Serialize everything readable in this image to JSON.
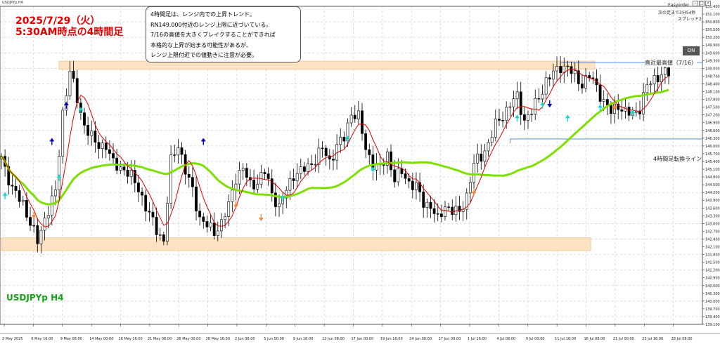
{
  "window": {
    "symbol_label": "USDJPYp,H4",
    "ea_name": "Easyorder",
    "timer_text": "次の足まで3分54秒",
    "spread_text": "スプレッド2",
    "on_button": "ON",
    "buttons": [
      "minimize-icon",
      "maximize-icon",
      "close-icon"
    ]
  },
  "titles": {
    "date_line1": "2025/7/29（火）",
    "date_line2": "5:30AM時点の4時間足",
    "symbol": "USDJPYp H4"
  },
  "note": {
    "lines": [
      "4時間足は、レンジ内での上昇トレンド。",
      "RN149.000付近のレンジ上限に近づいている。",
      "7/16の高値を大きくブレイクすることができれば",
      "本格的な上昇が始まる可能性があるが、",
      "レンジ上限付近での値動きに注意が必要。"
    ]
  },
  "annotations": {
    "recent_high": "直近最高値（7/16）",
    "turn_line": "4時間足転換ライン"
  },
  "colors": {
    "candle": "#000000",
    "ma_short": "#e00000",
    "ma_long": "#7ee000",
    "zone": "#fde2c4",
    "zone_border": "#f3c592",
    "line_blue": "#3d7fd6",
    "arrow_blue": "#0000aa",
    "arrow_cyan": "#19d6d6",
    "arrow_orange": "#f08a3c",
    "grid": "#cfcfcf",
    "date_title": "#e00000",
    "symbol_title": "#16a516"
  },
  "chart_data": {
    "type": "candlestick",
    "symbol": "USDJPYp",
    "timeframe": "H4",
    "grid": true,
    "y_axis": {
      "ticks": [
        "151.400",
        "151.100",
        "150.800",
        "150.500",
        "150.200",
        "149.900",
        "149.600",
        "149.300",
        "149.000",
        "148.700",
        "148.400",
        "148.100",
        "147.800",
        "147.500",
        "147.200",
        "146.900",
        "146.600",
        "146.300",
        "146.000",
        "145.700",
        "145.400",
        "145.100",
        "144.800",
        "144.500",
        "144.200",
        "143.900",
        "143.600",
        "143.300",
        "143.000",
        "142.700",
        "142.400",
        "142.100",
        "141.800",
        "141.500",
        "141.200",
        "140.900",
        "140.600",
        "140.300",
        "140.000",
        "139.700",
        "139.400",
        "139.100"
      ],
      "range": [
        139.1,
        151.4
      ]
    },
    "x_axis": {
      "labels": [
        "2 May 2025",
        "6 May 16:00",
        "9 May 08:00",
        "14 May 00:00",
        "16 May 16:00",
        "21 May 08:00",
        "26 May 00:00",
        "28 May 16:00",
        "2 Jun 08:00",
        "5 Jun 00:00",
        "9 Jun 16:00",
        "12 Jun 08:00",
        "17 Jun 00:00",
        "19 Jun 16:00",
        "24 Jun 08:00",
        "27 Jun 00:00",
        "1 Jul 16:00",
        "4 Jul 08:00",
        "9 Jul 00:00",
        "11 Jul 16:00",
        "16 Jul 08:00",
        "21 Jul 00:00",
        "23 Jul 16:00",
        "28 Jul 08:00"
      ]
    },
    "anchors": [
      [
        0,
        145.6
      ],
      [
        3,
        144.3
      ],
      [
        6,
        143.8
      ],
      [
        8,
        143.0
      ],
      [
        10,
        142.3
      ],
      [
        12,
        143.2
      ],
      [
        15,
        144.2
      ],
      [
        17,
        147.3
      ],
      [
        19,
        148.9
      ],
      [
        21,
        147.8
      ],
      [
        23,
        146.8
      ],
      [
        26,
        146.1
      ],
      [
        29,
        146.0
      ],
      [
        31,
        145.3
      ],
      [
        33,
        145.2
      ],
      [
        36,
        144.8
      ],
      [
        38,
        144.4
      ],
      [
        40,
        143.6
      ],
      [
        43,
        142.8
      ],
      [
        45,
        142.3
      ],
      [
        47,
        145.4
      ],
      [
        49,
        146.1
      ],
      [
        51,
        145.0
      ],
      [
        53,
        144.3
      ],
      [
        55,
        143.2
      ],
      [
        57,
        142.9
      ],
      [
        59,
        142.7
      ],
      [
        61,
        143.0
      ],
      [
        63,
        143.7
      ],
      [
        65,
        144.8
      ],
      [
        67,
        145.1
      ],
      [
        69,
        144.5
      ],
      [
        71,
        144.6
      ],
      [
        73,
        145.0
      ],
      [
        75,
        144.2
      ],
      [
        77,
        143.6
      ],
      [
        79,
        144.3
      ],
      [
        81,
        144.9
      ],
      [
        83,
        145.0
      ],
      [
        85,
        145.2
      ],
      [
        87,
        145.5
      ],
      [
        89,
        145.9
      ],
      [
        91,
        145.4
      ],
      [
        93,
        146.0
      ],
      [
        95,
        146.3
      ],
      [
        97,
        147.3
      ],
      [
        99,
        147.1
      ],
      [
        101,
        145.9
      ],
      [
        103,
        145.3
      ],
      [
        105,
        145.1
      ],
      [
        107,
        145.7
      ],
      [
        109,
        144.7
      ],
      [
        111,
        145.0
      ],
      [
        113,
        144.6
      ],
      [
        115,
        144.4
      ],
      [
        117,
        143.8
      ],
      [
        119,
        143.7
      ],
      [
        121,
        143.1
      ],
      [
        123,
        143.7
      ],
      [
        125,
        143.5
      ],
      [
        127,
        143.4
      ],
      [
        129,
        144.1
      ],
      [
        131,
        145.3
      ],
      [
        133,
        145.6
      ],
      [
        135,
        146.1
      ],
      [
        137,
        146.8
      ],
      [
        139,
        147.2
      ],
      [
        141,
        147.6
      ],
      [
        143,
        147.9
      ],
      [
        145,
        147.0
      ],
      [
        147,
        147.3
      ],
      [
        149,
        147.9
      ],
      [
        151,
        148.5
      ],
      [
        153,
        148.8
      ],
      [
        155,
        149.1
      ],
      [
        157,
        149.0
      ],
      [
        159,
        148.7
      ],
      [
        161,
        148.4
      ],
      [
        163,
        148.7
      ],
      [
        165,
        148.3
      ],
      [
        167,
        147.7
      ],
      [
        169,
        147.3
      ],
      [
        171,
        147.6
      ],
      [
        173,
        147.3
      ],
      [
        175,
        147.2
      ],
      [
        177,
        147.5
      ],
      [
        179,
        148.3
      ],
      [
        181,
        148.6
      ],
      [
        183,
        148.8
      ]
    ],
    "ma_short_period": "fast",
    "ma_long_period": "slow",
    "zones": [
      {
        "name": "range-upper",
        "from": 148.96,
        "to": 149.28
      },
      {
        "name": "range-lower",
        "from": 141.95,
        "to": 142.45
      }
    ],
    "lines": [
      {
        "name": "recent-high",
        "value": 149.23,
        "start_bar": 155
      },
      {
        "name": "turn-line",
        "value": 146.27,
        "start_bar": 141
      }
    ],
    "signals": {
      "up_blue": [
        [
          18,
          147.6
        ],
        [
          14,
          146.2
        ],
        [
          56,
          146.2
        ]
      ],
      "up_cyan": [
        [
          1,
          144.1
        ],
        [
          16,
          144.8
        ],
        [
          22,
          147.4
        ],
        [
          78,
          144.0
        ],
        [
          96,
          146.3
        ],
        [
          103,
          145.1
        ],
        [
          143,
          147.1
        ],
        [
          150,
          147.6
        ],
        [
          157,
          147.1
        ],
        [
          166,
          147.5
        ],
        [
          175,
          147.3
        ]
      ],
      "down_orange": [
        [
          9,
          143.3
        ],
        [
          65,
          143.7
        ],
        [
          72,
          143.2
        ],
        [
          131,
          144.2
        ],
        [
          170,
          147.5
        ]
      ],
      "down_blue": [
        [
          152,
          147.6
        ]
      ]
    }
  }
}
